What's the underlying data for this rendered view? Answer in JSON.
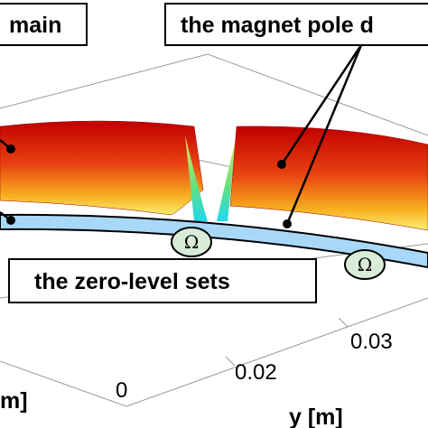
{
  "annotations": {
    "domain": "main",
    "magnet_pole": "the magnet pole d",
    "zero_level": "the zero-level sets"
  },
  "regions": [
    "Ω",
    "Ω"
  ],
  "axes": {
    "y_label": "y [m]",
    "x_label": "m]",
    "y_ticks": [
      "0.03",
      "0.02",
      "0"
    ]
  }
}
